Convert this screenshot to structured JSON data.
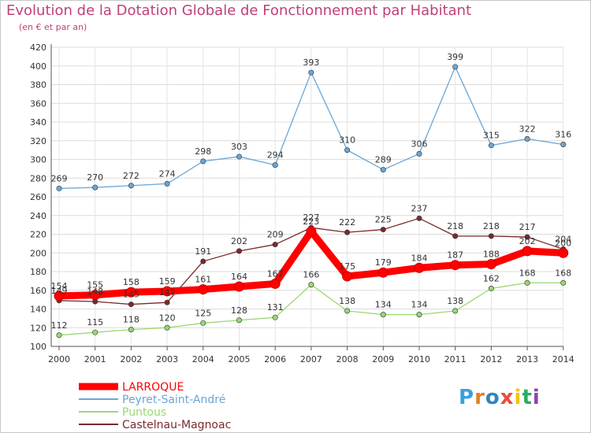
{
  "chart_data": {
    "type": "line",
    "title": "Evolution de la Dotation Globale de Fonctionnement par Habitant",
    "subtitle": "(en € et par an)",
    "categories": [
      "2000",
      "2001",
      "2002",
      "2003",
      "2004",
      "2005",
      "2006",
      "2007",
      "2008",
      "2009",
      "2010",
      "2011",
      "2012",
      "2013",
      "2014"
    ],
    "ylim": [
      100,
      420
    ],
    "yticks": [
      100,
      120,
      140,
      160,
      180,
      200,
      220,
      240,
      260,
      280,
      300,
      320,
      340,
      360,
      380,
      400,
      420
    ],
    "grid": true,
    "legend_position": "bottom-left",
    "series": [
      {
        "name": "LARROQUE",
        "color": "#ff0000",
        "values": [
          154,
          155,
          158,
          159,
          161,
          164,
          167,
          223,
          175,
          179,
          184,
          187,
          188,
          202,
          200
        ]
      },
      {
        "name": "Peyret-Saint-André",
        "color": "#6aa6d6",
        "values": [
          269,
          270,
          272,
          274,
          298,
          303,
          294,
          393,
          310,
          289,
          306,
          399,
          315,
          322,
          316
        ]
      },
      {
        "name": "Puntous",
        "color": "#9ad870",
        "values": [
          112,
          115,
          118,
          120,
          125,
          128,
          131,
          166,
          138,
          134,
          134,
          138,
          162,
          168,
          168
        ]
      },
      {
        "name": "Castelnau-Magnoac",
        "color": "#7a2a2a",
        "values": [
          149,
          148,
          145,
          147,
          191,
          202,
          209,
          227,
          222,
          225,
          237,
          218,
          218,
          217,
          204
        ]
      }
    ]
  },
  "logo": {
    "text": "Proxiti",
    "letter_colors": [
      "#3aa0e0",
      "#e67e22",
      "#2e86c1",
      "#e74c3c",
      "#f1c40f",
      "#27ae60",
      "#8e44ad"
    ]
  }
}
